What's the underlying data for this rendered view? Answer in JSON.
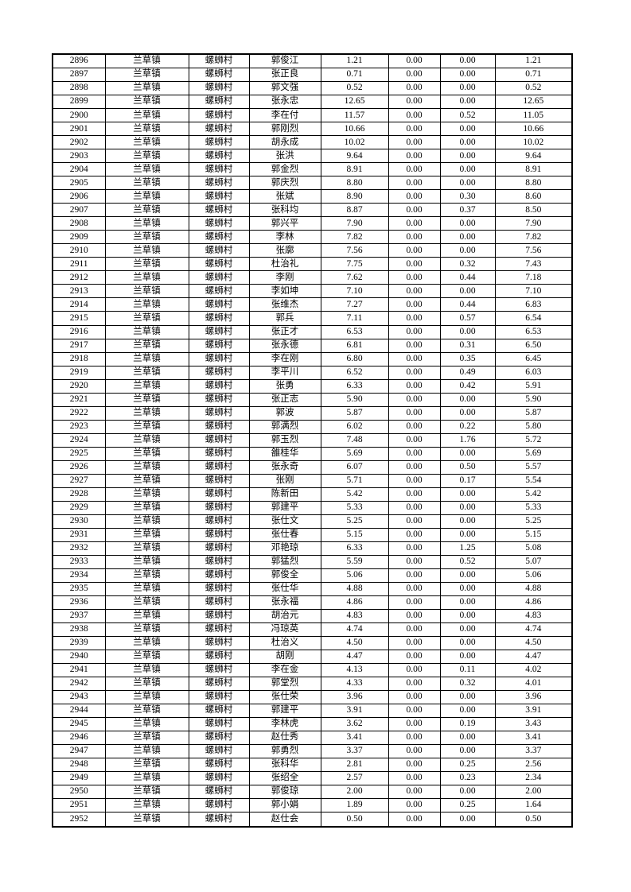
{
  "document": {
    "type": "table-page",
    "background_color": "#ffffff",
    "border_color": "#000000",
    "text_color": "#000000"
  },
  "table": {
    "column_semantics": [
      "row-id",
      "town",
      "village",
      "person-name",
      "amount-1",
      "amount-2",
      "amount-3",
      "amount-4"
    ],
    "rows": [
      [
        "2896",
        "兰草镇",
        "螺蛳村",
        "郭俊江",
        "1.21",
        "0.00",
        "0.00",
        "1.21"
      ],
      [
        "2897",
        "兰草镇",
        "螺蛳村",
        "张正良",
        "0.71",
        "0.00",
        "0.00",
        "0.71"
      ],
      [
        "2898",
        "兰草镇",
        "螺蛳村",
        "郭文强",
        "0.52",
        "0.00",
        "0.00",
        "0.52"
      ],
      [
        "2899",
        "兰草镇",
        "螺蛳村",
        "张永忠",
        "12.65",
        "0.00",
        "0.00",
        "12.65"
      ],
      [
        "2900",
        "兰草镇",
        "螺蛳村",
        "李在付",
        "11.57",
        "0.00",
        "0.52",
        "11.05"
      ],
      [
        "2901",
        "兰草镇",
        "螺蛳村",
        "郭刚烈",
        "10.66",
        "0.00",
        "0.00",
        "10.66"
      ],
      [
        "2902",
        "兰草镇",
        "螺蛳村",
        "胡永成",
        "10.02",
        "0.00",
        "0.00",
        "10.02"
      ],
      [
        "2903",
        "兰草镇",
        "螺蛳村",
        "张洪",
        "9.64",
        "0.00",
        "0.00",
        "9.64"
      ],
      [
        "2904",
        "兰草镇",
        "螺蛳村",
        "郭金烈",
        "8.91",
        "0.00",
        "0.00",
        "8.91"
      ],
      [
        "2905",
        "兰草镇",
        "螺蛳村",
        "郭庆烈",
        "8.80",
        "0.00",
        "0.00",
        "8.80"
      ],
      [
        "2906",
        "兰草镇",
        "螺蛳村",
        "张斌",
        "8.90",
        "0.00",
        "0.30",
        "8.60"
      ],
      [
        "2907",
        "兰草镇",
        "螺蛳村",
        "张科均",
        "8.87",
        "0.00",
        "0.37",
        "8.50"
      ],
      [
        "2908",
        "兰草镇",
        "螺蛳村",
        "郭兴平",
        "7.90",
        "0.00",
        "0.00",
        "7.90"
      ],
      [
        "2909",
        "兰草镇",
        "螺蛳村",
        "李林",
        "7.82",
        "0.00",
        "0.00",
        "7.82"
      ],
      [
        "2910",
        "兰草镇",
        "螺蛳村",
        "张廓",
        "7.56",
        "0.00",
        "0.00",
        "7.56"
      ],
      [
        "2911",
        "兰草镇",
        "螺蛳村",
        "杜治礼",
        "7.75",
        "0.00",
        "0.32",
        "7.43"
      ],
      [
        "2912",
        "兰草镇",
        "螺蛳村",
        "李刚",
        "7.62",
        "0.00",
        "0.44",
        "7.18"
      ],
      [
        "2913",
        "兰草镇",
        "螺蛳村",
        "李如坤",
        "7.10",
        "0.00",
        "0.00",
        "7.10"
      ],
      [
        "2914",
        "兰草镇",
        "螺蛳村",
        "张维杰",
        "7.27",
        "0.00",
        "0.44",
        "6.83"
      ],
      [
        "2915",
        "兰草镇",
        "螺蛳村",
        "郭兵",
        "7.11",
        "0.00",
        "0.57",
        "6.54"
      ],
      [
        "2916",
        "兰草镇",
        "螺蛳村",
        "张正才",
        "6.53",
        "0.00",
        "0.00",
        "6.53"
      ],
      [
        "2917",
        "兰草镇",
        "螺蛳村",
        "张永德",
        "6.81",
        "0.00",
        "0.31",
        "6.50"
      ],
      [
        "2918",
        "兰草镇",
        "螺蛳村",
        "李在刚",
        "6.80",
        "0.00",
        "0.35",
        "6.45"
      ],
      [
        "2919",
        "兰草镇",
        "螺蛳村",
        "李平川",
        "6.52",
        "0.00",
        "0.49",
        "6.03"
      ],
      [
        "2920",
        "兰草镇",
        "螺蛳村",
        "张勇",
        "6.33",
        "0.00",
        "0.42",
        "5.91"
      ],
      [
        "2921",
        "兰草镇",
        "螺蛳村",
        "张正志",
        "5.90",
        "0.00",
        "0.00",
        "5.90"
      ],
      [
        "2922",
        "兰草镇",
        "螺蛳村",
        "郭波",
        "5.87",
        "0.00",
        "0.00",
        "5.87"
      ],
      [
        "2923",
        "兰草镇",
        "螺蛳村",
        "郭满烈",
        "6.02",
        "0.00",
        "0.22",
        "5.80"
      ],
      [
        "2924",
        "兰草镇",
        "螺蛳村",
        "郭玉烈",
        "7.48",
        "0.00",
        "1.76",
        "5.72"
      ],
      [
        "2925",
        "兰草镇",
        "螺蛳村",
        "雒桂华",
        "5.69",
        "0.00",
        "0.00",
        "5.69"
      ],
      [
        "2926",
        "兰草镇",
        "螺蛳村",
        "张永奇",
        "6.07",
        "0.00",
        "0.50",
        "5.57"
      ],
      [
        "2927",
        "兰草镇",
        "螺蛳村",
        "张刚",
        "5.71",
        "0.00",
        "0.17",
        "5.54"
      ],
      [
        "2928",
        "兰草镇",
        "螺蛳村",
        "陈新田",
        "5.42",
        "0.00",
        "0.00",
        "5.42"
      ],
      [
        "2929",
        "兰草镇",
        "螺蛳村",
        "郭建平",
        "5.33",
        "0.00",
        "0.00",
        "5.33"
      ],
      [
        "2930",
        "兰草镇",
        "螺蛳村",
        "张仕文",
        "5.25",
        "0.00",
        "0.00",
        "5.25"
      ],
      [
        "2931",
        "兰草镇",
        "螺蛳村",
        "张仕春",
        "5.15",
        "0.00",
        "0.00",
        "5.15"
      ],
      [
        "2932",
        "兰草镇",
        "螺蛳村",
        "邓艳琼",
        "6.33",
        "0.00",
        "1.25",
        "5.08"
      ],
      [
        "2933",
        "兰草镇",
        "螺蛳村",
        "郭猛烈",
        "5.59",
        "0.00",
        "0.52",
        "5.07"
      ],
      [
        "2934",
        "兰草镇",
        "螺蛳村",
        "郭俊全",
        "5.06",
        "0.00",
        "0.00",
        "5.06"
      ],
      [
        "2935",
        "兰草镇",
        "螺蛳村",
        "张仕华",
        "4.88",
        "0.00",
        "0.00",
        "4.88"
      ],
      [
        "2936",
        "兰草镇",
        "螺蛳村",
        "张永福",
        "4.86",
        "0.00",
        "0.00",
        "4.86"
      ],
      [
        "2937",
        "兰草镇",
        "螺蛳村",
        "胡治元",
        "4.83",
        "0.00",
        "0.00",
        "4.83"
      ],
      [
        "2938",
        "兰草镇",
        "螺蛳村",
        "冯琼英",
        "4.74",
        "0.00",
        "0.00",
        "4.74"
      ],
      [
        "2939",
        "兰草镇",
        "螺蛳村",
        "杜治义",
        "4.50",
        "0.00",
        "0.00",
        "4.50"
      ],
      [
        "2940",
        "兰草镇",
        "螺蛳村",
        "胡刚",
        "4.47",
        "0.00",
        "0.00",
        "4.47"
      ],
      [
        "2941",
        "兰草镇",
        "螺蛳村",
        "李在金",
        "4.13",
        "0.00",
        "0.11",
        "4.02"
      ],
      [
        "2942",
        "兰草镇",
        "螺蛳村",
        "郭堂烈",
        "4.33",
        "0.00",
        "0.32",
        "4.01"
      ],
      [
        "2943",
        "兰草镇",
        "螺蛳村",
        "张仕荣",
        "3.96",
        "0.00",
        "0.00",
        "3.96"
      ],
      [
        "2944",
        "兰草镇",
        "螺蛳村",
        "郭建平",
        "3.91",
        "0.00",
        "0.00",
        "3.91"
      ],
      [
        "2945",
        "兰草镇",
        "螺蛳村",
        "李林虎",
        "3.62",
        "0.00",
        "0.19",
        "3.43"
      ],
      [
        "2946",
        "兰草镇",
        "螺蛳村",
        "赵仕秀",
        "3.41",
        "0.00",
        "0.00",
        "3.41"
      ],
      [
        "2947",
        "兰草镇",
        "螺蛳村",
        "郭勇烈",
        "3.37",
        "0.00",
        "0.00",
        "3.37"
      ],
      [
        "2948",
        "兰草镇",
        "螺蛳村",
        "张科华",
        "2.81",
        "0.00",
        "0.25",
        "2.56"
      ],
      [
        "2949",
        "兰草镇",
        "螺蛳村",
        "张绍全",
        "2.57",
        "0.00",
        "0.23",
        "2.34"
      ],
      [
        "2950",
        "兰草镇",
        "螺蛳村",
        "郭俊琼",
        "2.00",
        "0.00",
        "0.00",
        "2.00"
      ],
      [
        "2951",
        "兰草镇",
        "螺蛳村",
        "郭小娟",
        "1.89",
        "0.00",
        "0.25",
        "1.64"
      ],
      [
        "2952",
        "兰草镇",
        "螺蛳村",
        "赵仕会",
        "0.50",
        "0.00",
        "0.00",
        "0.50"
      ]
    ]
  }
}
